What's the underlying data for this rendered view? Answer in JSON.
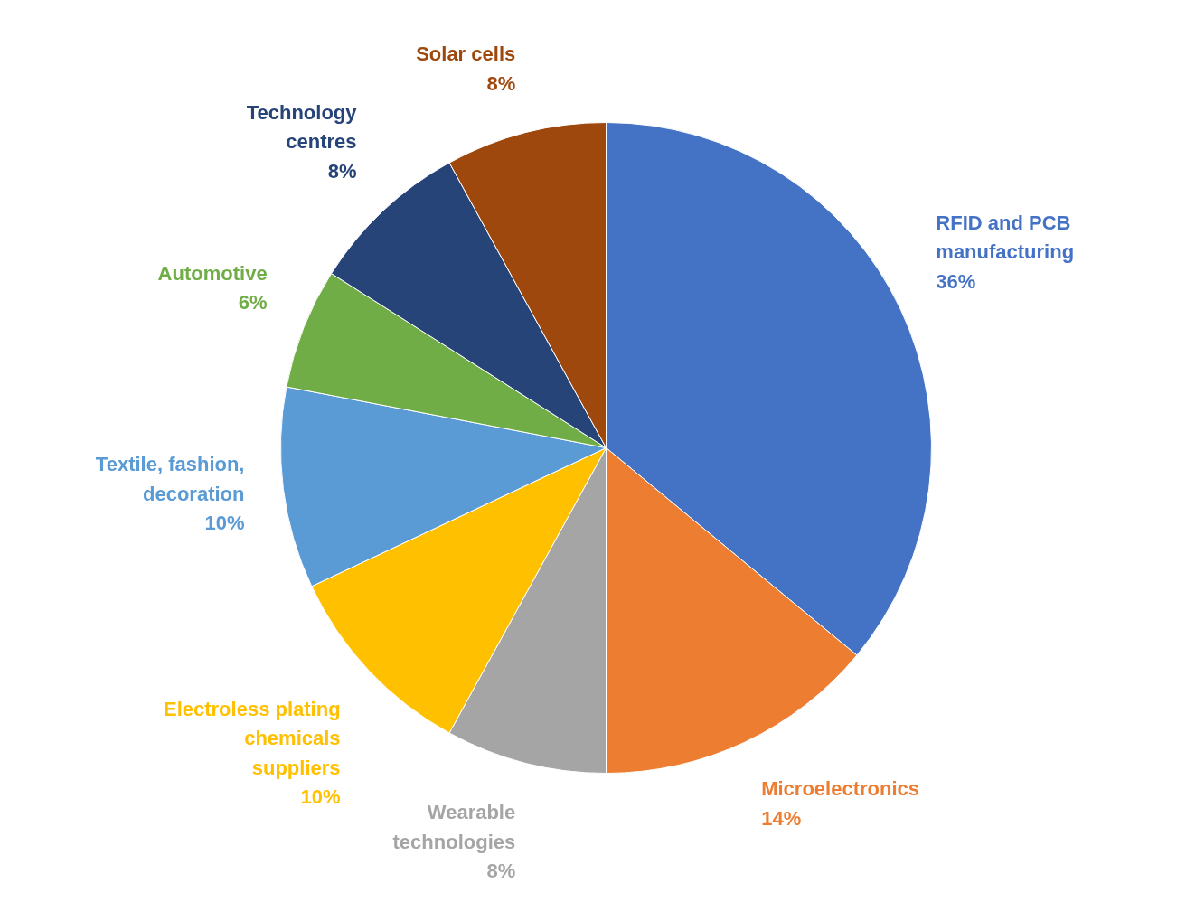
{
  "chart_data": {
    "type": "pie",
    "categories": [
      "RFID and PCB\nmanufacturing",
      "Microelectronics",
      "Wearable\ntechnologies",
      "Electroless plating\nchemicals\nsuppliers",
      "Textile, fashion,\ndecoration",
      "Automotive",
      "Technology\ncentres",
      "Solar cells"
    ],
    "values": [
      36,
      14,
      8,
      10,
      10,
      6,
      8,
      8
    ],
    "value_labels": [
      "36%",
      "14%",
      "8%",
      "10%",
      "10%",
      "6%",
      "8%",
      "8%"
    ],
    "colors": [
      "#4472c4",
      "#ed7d31",
      "#a5a5a5",
      "#ffc000",
      "#5b9bd5",
      "#70ad47",
      "#264478",
      "#9e480e"
    ]
  }
}
